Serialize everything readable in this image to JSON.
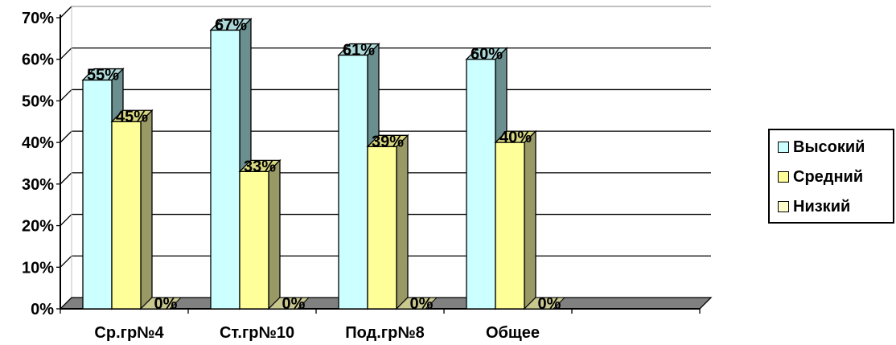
{
  "chart_data": {
    "type": "bar",
    "categories": [
      "Ср.гр№4",
      "Ст.гр№10",
      "Под.гр№8",
      "Общее"
    ],
    "series": [
      {
        "name": "Высокий",
        "values": [
          55,
          67,
          61,
          60
        ],
        "labels": [
          "55%",
          "67%",
          "61%",
          "60%"
        ],
        "color": "#ccffff"
      },
      {
        "name": "Средний",
        "values": [
          45,
          33,
          39,
          40
        ],
        "labels": [
          "45%",
          "33%",
          "39%",
          "40%"
        ],
        "color": "#ffff99"
      },
      {
        "name": "Низкий",
        "values": [
          0,
          0,
          0,
          0
        ],
        "labels": [
          "0%",
          "0%",
          "0%",
          "0%"
        ],
        "color": "#ffffcc"
      }
    ],
    "yticks": [
      "0%",
      "10%",
      "20%",
      "30%",
      "40%",
      "50%",
      "60%",
      "70%"
    ],
    "ylim": [
      0,
      70
    ],
    "grid": true,
    "legend_position": "right",
    "colors": {
      "floor": "#808080",
      "side_dark": "#808080",
      "gridline": "#000000"
    }
  }
}
